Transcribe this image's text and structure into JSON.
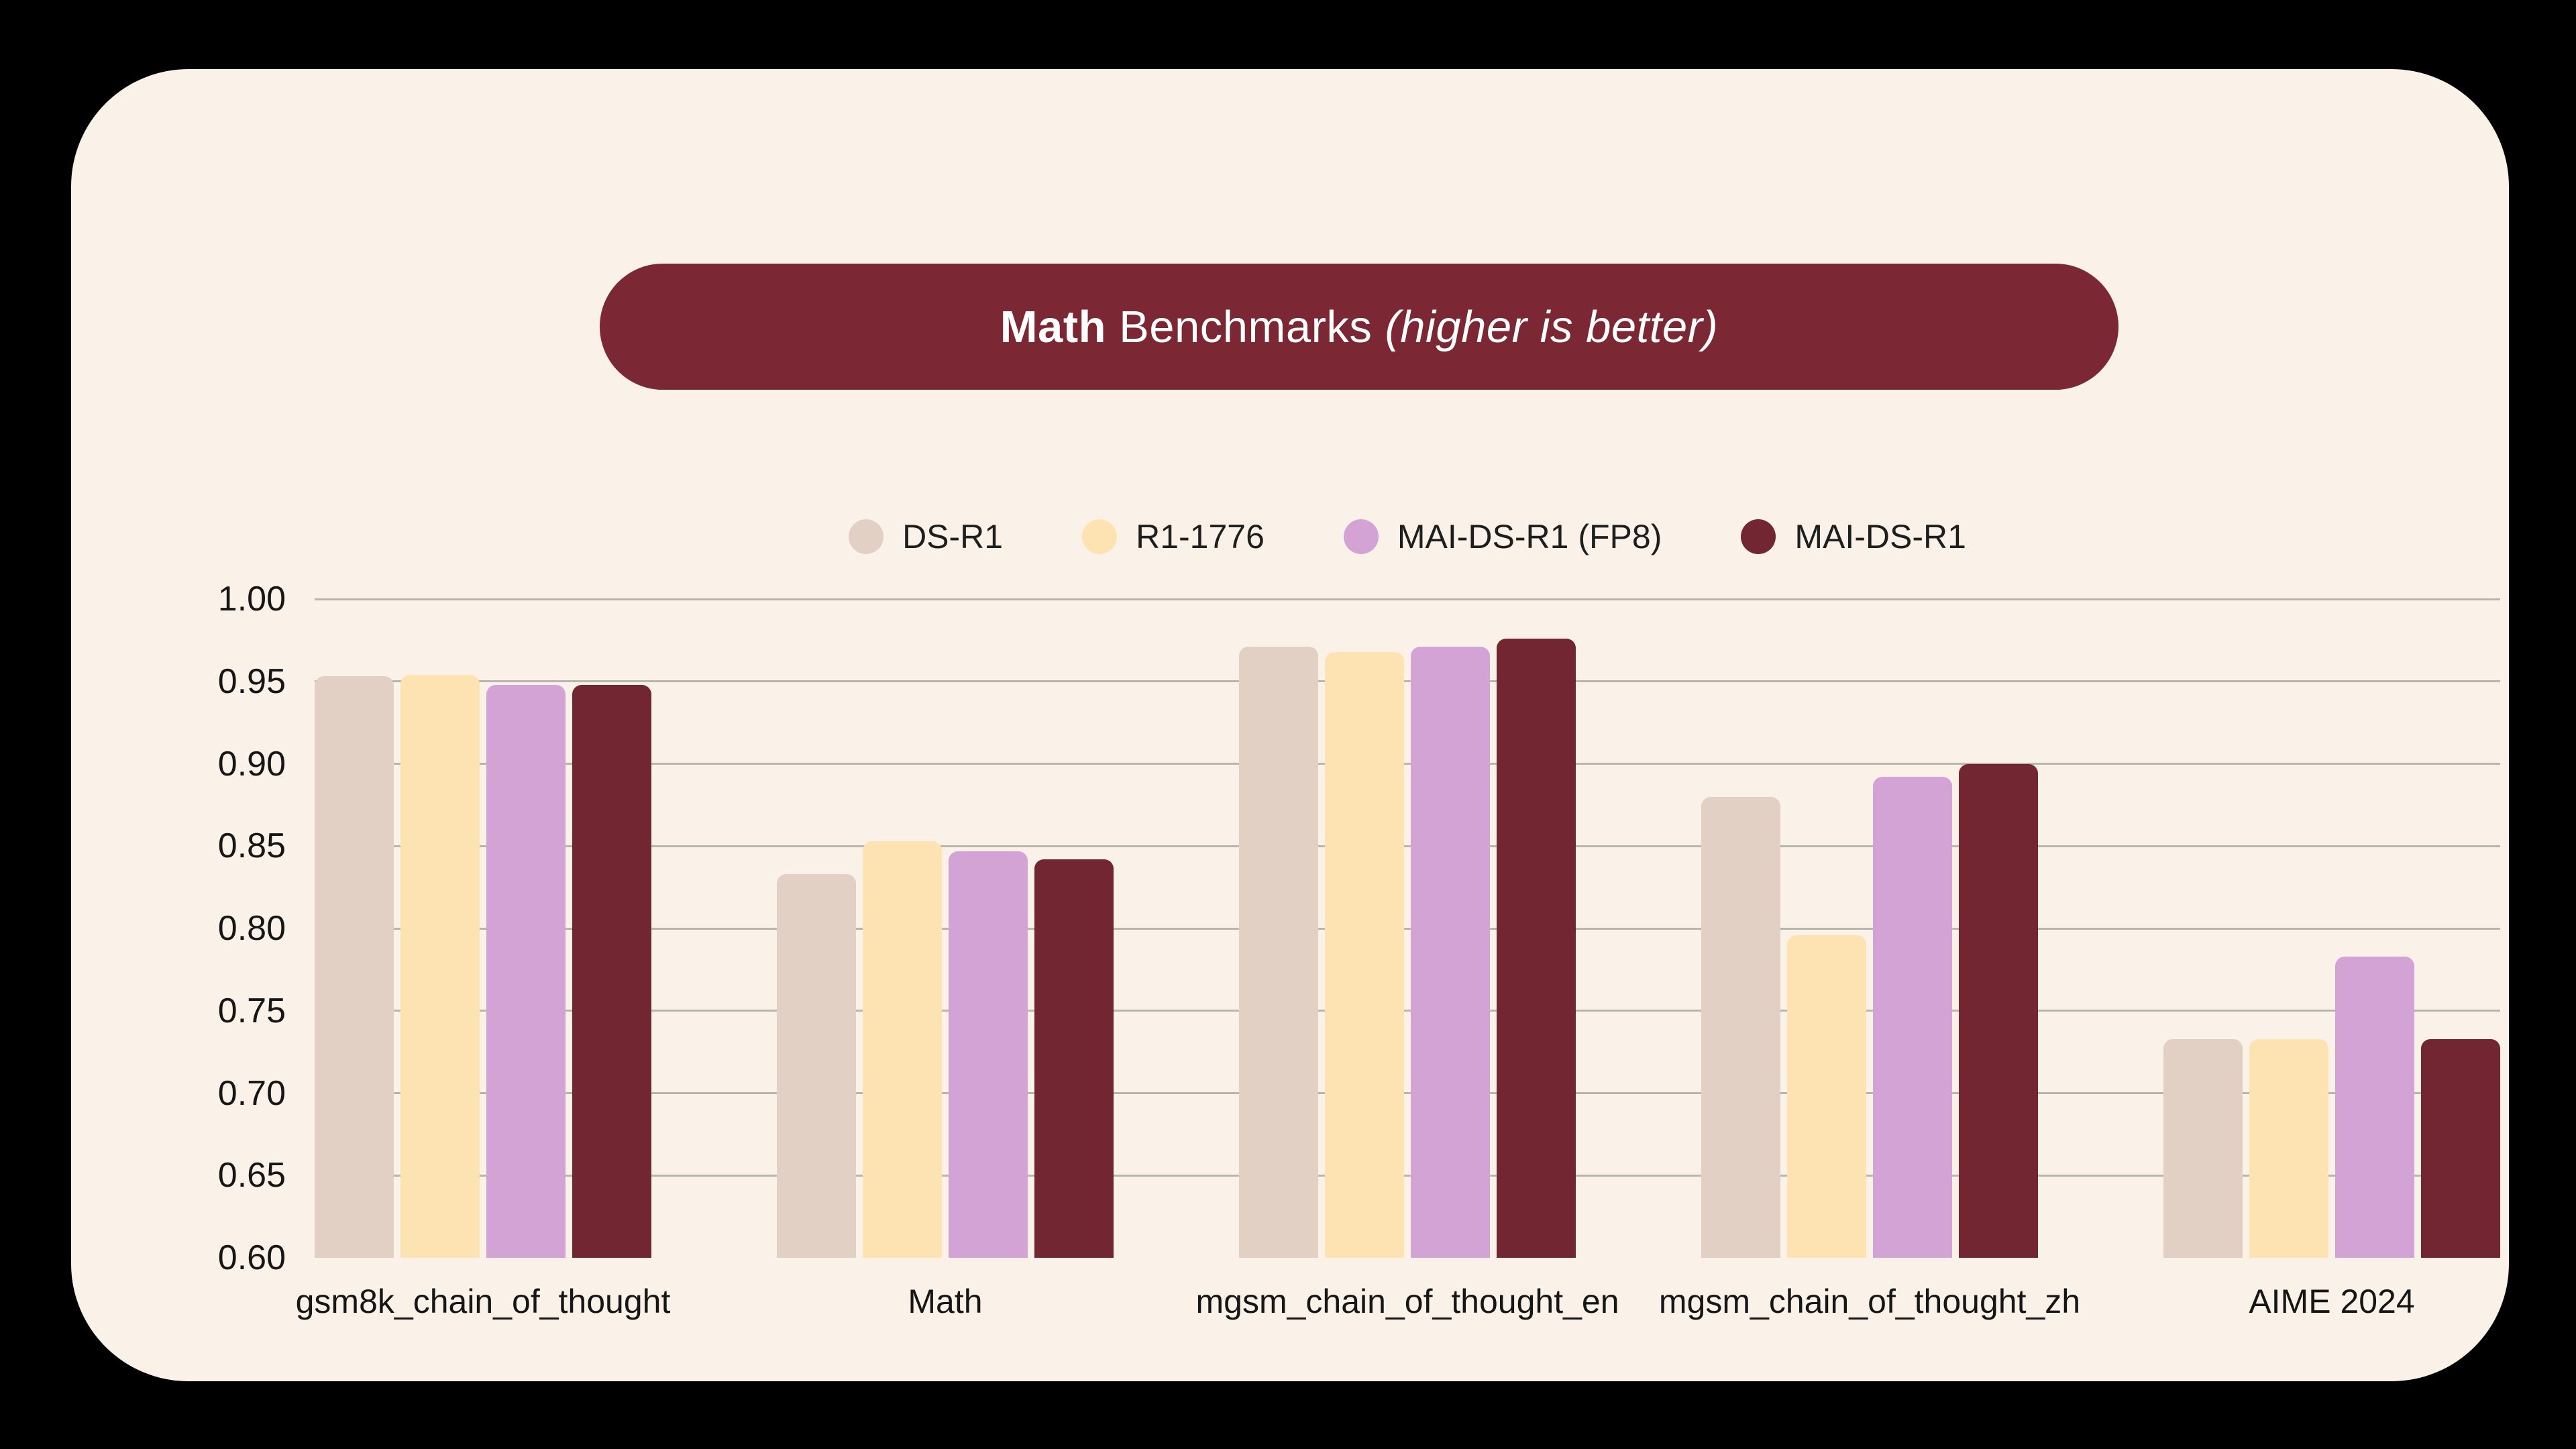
{
  "title": {
    "bold": "Math",
    "regular": "Benchmarks",
    "italic": "(higher is better)"
  },
  "colors": {
    "page_background": "#000000",
    "card_background": "#faf2e9",
    "banner_background": "#7b2734",
    "banner_text": "#ffffff",
    "gridline": "#b8b5ae",
    "axis_text": "#161616"
  },
  "chart_data": {
    "type": "bar",
    "title": "Math Benchmarks (higher is better)",
    "categories": [
      "gsm8k_chain_of_thought",
      "Math",
      "mgsm_chain_of_thought_en",
      "mgsm_chain_of_thought_zh",
      "AIME 2024"
    ],
    "series": [
      {
        "name": "DS-R1",
        "color": "#e2d0c4",
        "values": [
          0.953,
          0.833,
          0.971,
          0.88,
          0.733
        ]
      },
      {
        "name": "R1-1776",
        "color": "#fde3b2",
        "values": [
          0.954,
          0.853,
          0.968,
          0.796,
          0.733
        ]
      },
      {
        "name": "MAI-DS-R1 (FP8)",
        "color": "#d4a3d6",
        "values": [
          0.948,
          0.847,
          0.971,
          0.892,
          0.783
        ]
      },
      {
        "name": "MAI-DS-R1",
        "color": "#722632",
        "values": [
          0.948,
          0.842,
          0.976,
          0.9,
          0.733
        ]
      }
    ],
    "ylim": [
      0.6,
      1.0
    ],
    "ytick_step": 0.05,
    "ytick_labels": [
      "1.00",
      "0.95",
      "0.90",
      "0.85",
      "0.80",
      "0.75",
      "0.70",
      "0.65",
      "0.60"
    ],
    "grid": "horizontal",
    "legend_position": "top-center",
    "higher_is_better": true
  }
}
